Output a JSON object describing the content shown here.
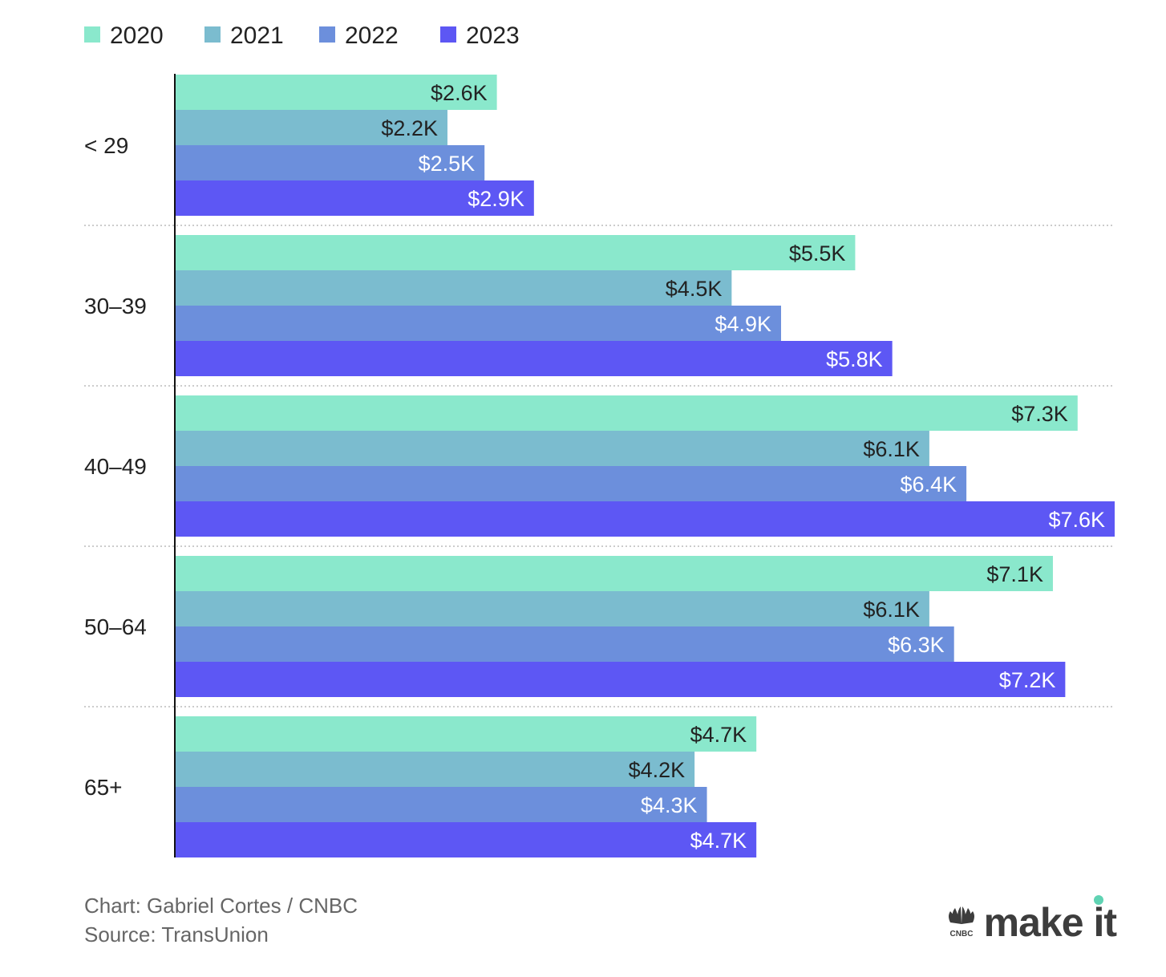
{
  "chart_data": {
    "type": "bar",
    "orientation": "horizontal",
    "title": "",
    "xlabel": "",
    "ylabel": "",
    "xlim": [
      0,
      7.6
    ],
    "grid": false,
    "legend_position": "top-left",
    "categories": [
      "< 29",
      "30–39",
      "40–49",
      "50–64",
      "65+"
    ],
    "series": [
      {
        "name": "2020",
        "color": "#8ae8cc",
        "label_color": "#222222",
        "values": [
          2.6,
          5.5,
          7.3,
          7.1,
          4.7
        ],
        "labels": [
          "$2.6K",
          "$5.5K",
          "$7.3K",
          "$7.1K",
          "$4.7K"
        ]
      },
      {
        "name": "2021",
        "color": "#7bbccf",
        "label_color": "#222222",
        "values": [
          2.2,
          4.5,
          6.1,
          6.1,
          4.2
        ],
        "labels": [
          "$2.2K",
          "$4.5K",
          "$6.1K",
          "$6.1K",
          "$4.2K"
        ]
      },
      {
        "name": "2022",
        "color": "#6c8fdc",
        "label_color": "#ffffff",
        "values": [
          2.5,
          4.9,
          6.4,
          6.3,
          4.3
        ],
        "labels": [
          "$2.5K",
          "$4.9K",
          "$6.4K",
          "$6.3K",
          "$4.3K"
        ]
      },
      {
        "name": "2023",
        "color": "#5d57f4",
        "label_color": "#ffffff",
        "values": [
          2.9,
          5.8,
          7.6,
          7.2,
          4.7
        ],
        "labels": [
          "$2.9K",
          "$5.8K",
          "$7.6K",
          "$7.2K",
          "$4.7K"
        ]
      }
    ]
  },
  "footer": {
    "credit": "Chart: Gabriel Cortes / CNBC",
    "source": "Source: TransUnion"
  },
  "logo": {
    "text": "make it",
    "network": "CNBC",
    "dot_color": "#5fd3b3"
  }
}
